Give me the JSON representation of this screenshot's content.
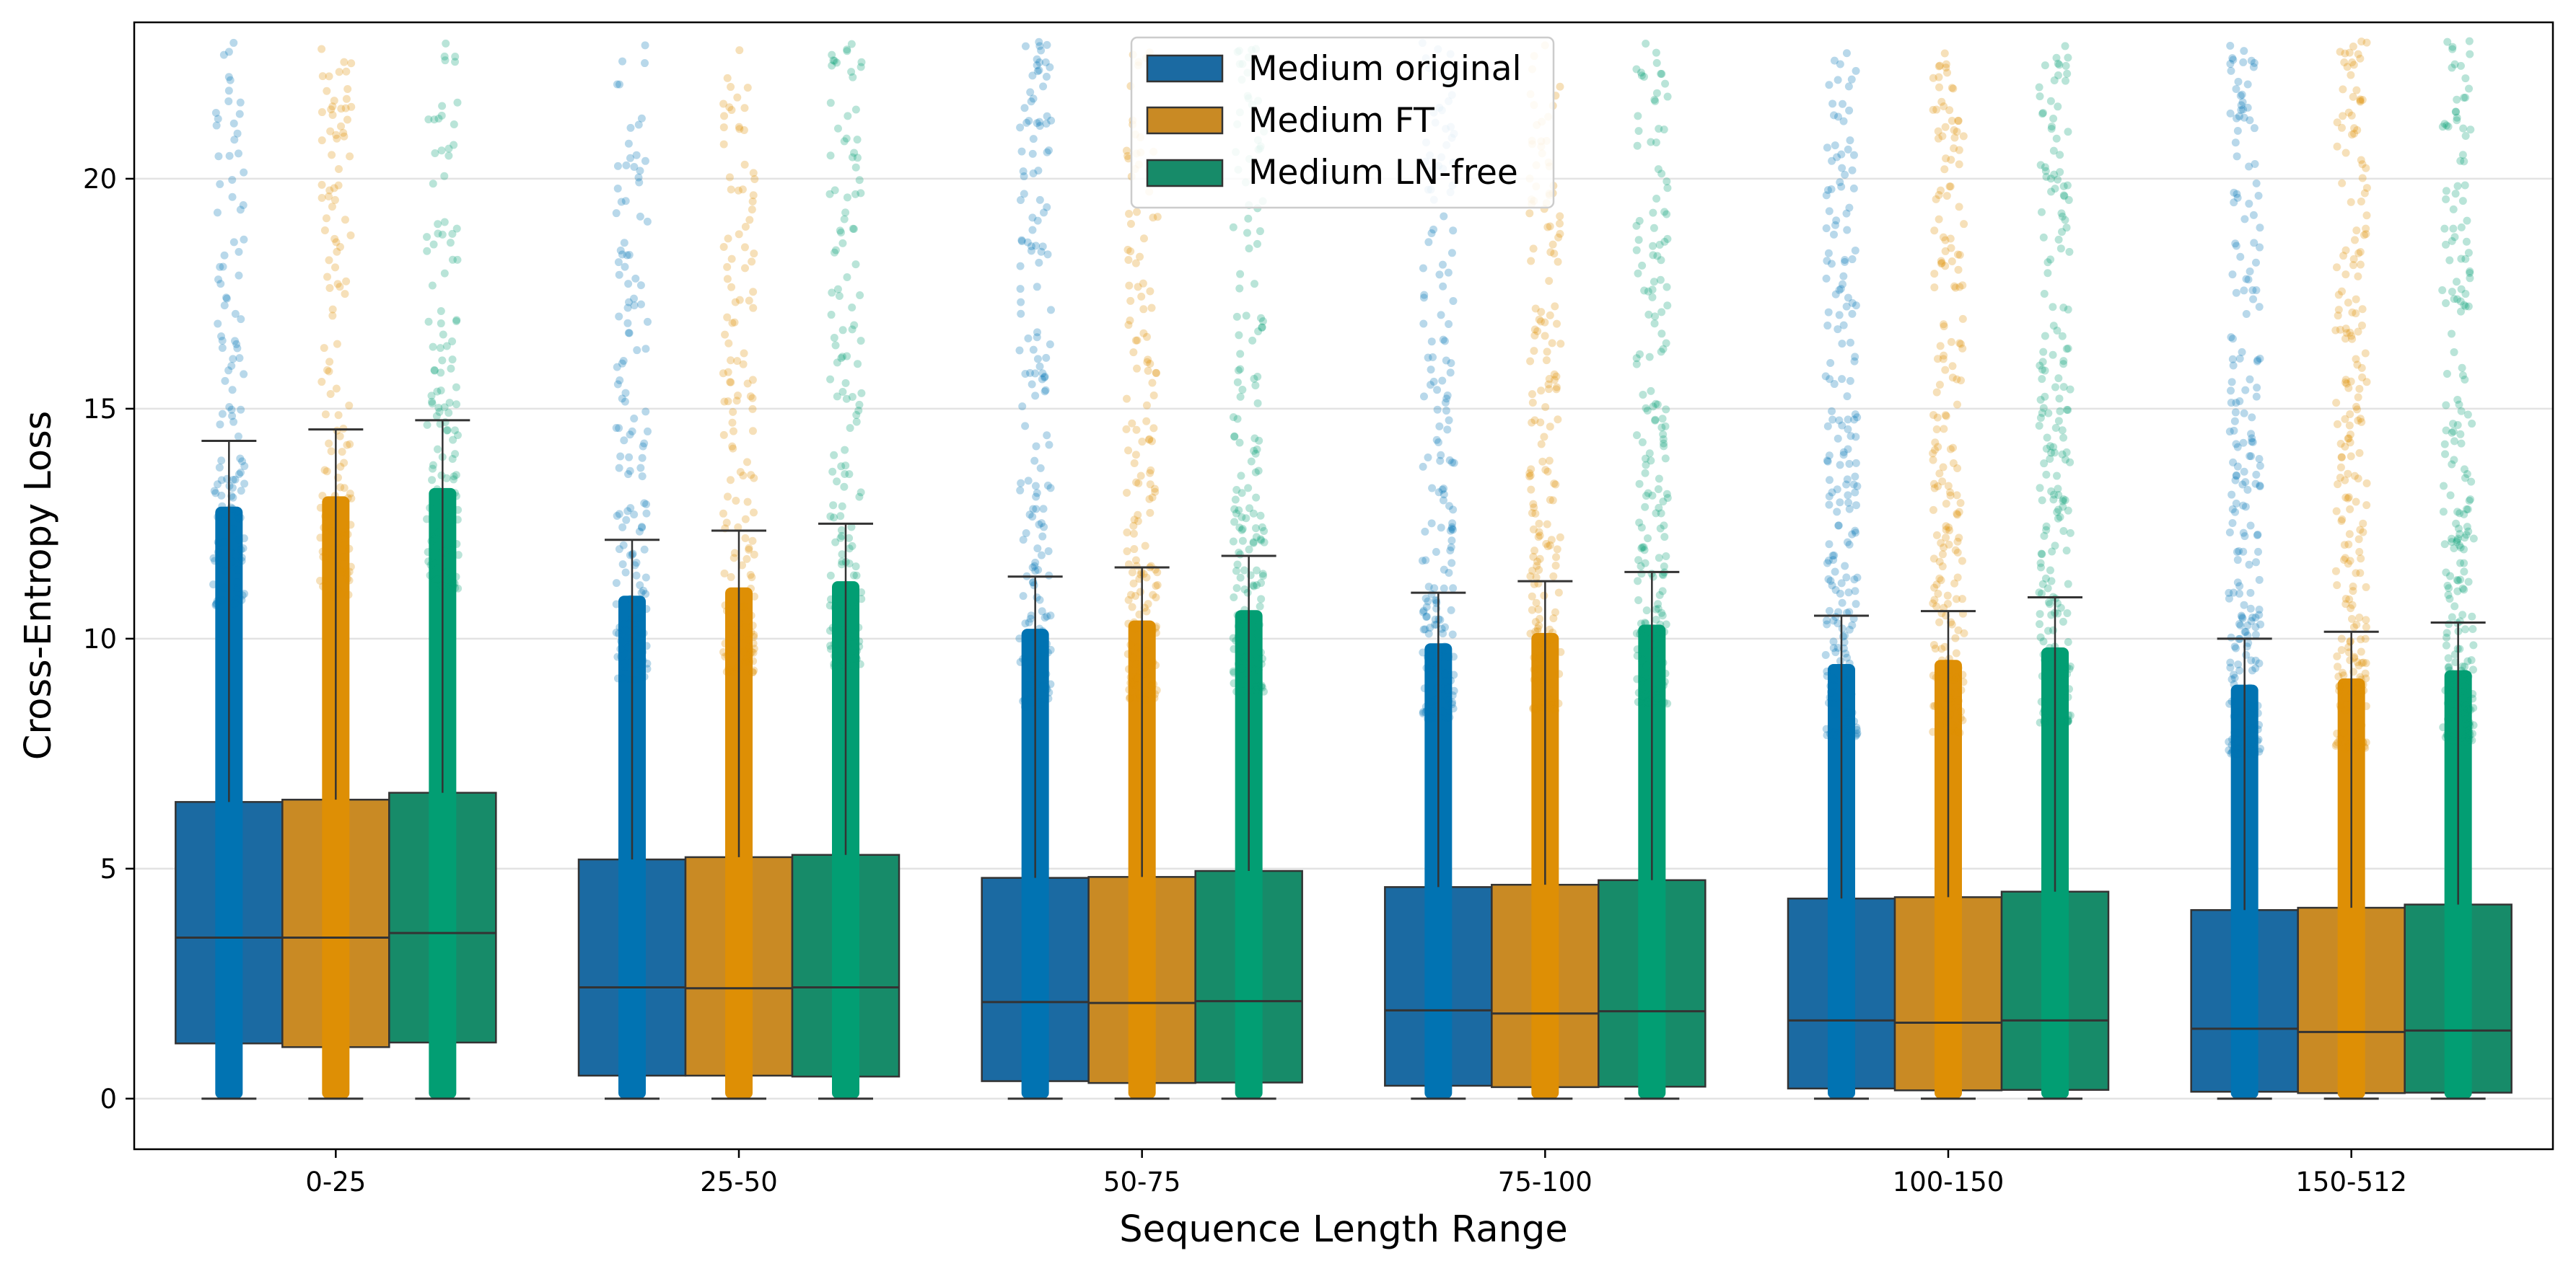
{
  "chart_data": {
    "type": "box",
    "xlabel": "Sequence Length Range",
    "ylabel": "Cross-Entropy Loss",
    "categories": [
      "0-25",
      "25-50",
      "50-75",
      "75-100",
      "100-150",
      "150-512"
    ],
    "ylim": [
      -1.1,
      23.4
    ],
    "yticks": [
      0,
      5,
      10,
      15,
      20
    ],
    "grid": "horizontal",
    "legend_position": "top-center",
    "series": [
      {
        "name": "Medium original",
        "color": "#0173b2",
        "box_color": "#1b6aa2",
        "boxes": [
          {
            "q1": 1.2,
            "median": 3.5,
            "q3": 6.45,
            "whisker_low": 0,
            "whisker_high": 14.3
          },
          {
            "q1": 0.5,
            "median": 2.42,
            "q3": 5.2,
            "whisker_low": 0,
            "whisker_high": 12.15
          },
          {
            "q1": 0.38,
            "median": 2.1,
            "q3": 4.8,
            "whisker_low": 0,
            "whisker_high": 11.35
          },
          {
            "q1": 0.28,
            "median": 1.92,
            "q3": 4.6,
            "whisker_low": 0,
            "whisker_high": 11.0
          },
          {
            "q1": 0.22,
            "median": 1.7,
            "q3": 4.35,
            "whisker_low": 0,
            "whisker_high": 10.5
          },
          {
            "q1": 0.15,
            "median": 1.52,
            "q3": 4.1,
            "whisker_low": 0,
            "whisker_high": 10.0
          }
        ]
      },
      {
        "name": "Medium FT",
        "color": "#de8f05",
        "box_color": "#c98a24",
        "boxes": [
          {
            "q1": 1.12,
            "median": 3.5,
            "q3": 6.5,
            "whisker_low": 0,
            "whisker_high": 14.55
          },
          {
            "q1": 0.5,
            "median": 2.4,
            "q3": 5.25,
            "whisker_low": 0,
            "whisker_high": 12.35
          },
          {
            "q1": 0.34,
            "median": 2.08,
            "q3": 4.82,
            "whisker_low": 0,
            "whisker_high": 11.55
          },
          {
            "q1": 0.25,
            "median": 1.85,
            "q3": 4.65,
            "whisker_low": 0,
            "whisker_high": 11.25
          },
          {
            "q1": 0.18,
            "median": 1.65,
            "q3": 4.38,
            "whisker_low": 0,
            "whisker_high": 10.6
          },
          {
            "q1": 0.12,
            "median": 1.45,
            "q3": 4.15,
            "whisker_low": 0,
            "whisker_high": 10.15
          }
        ]
      },
      {
        "name": "Medium LN-free",
        "color": "#029e73",
        "box_color": "#178b69",
        "boxes": [
          {
            "q1": 1.22,
            "median": 3.6,
            "q3": 6.65,
            "whisker_low": 0,
            "whisker_high": 14.75
          },
          {
            "q1": 0.48,
            "median": 2.42,
            "q3": 5.3,
            "whisker_low": 0,
            "whisker_high": 12.5
          },
          {
            "q1": 0.35,
            "median": 2.12,
            "q3": 4.95,
            "whisker_low": 0,
            "whisker_high": 11.8
          },
          {
            "q1": 0.26,
            "median": 1.9,
            "q3": 4.75,
            "whisker_low": 0,
            "whisker_high": 11.45
          },
          {
            "q1": 0.19,
            "median": 1.7,
            "q3": 4.5,
            "whisker_low": 0,
            "whisker_high": 10.9
          },
          {
            "q1": 0.13,
            "median": 1.48,
            "q3": 4.22,
            "whisker_low": 0,
            "whisker_high": 10.35
          }
        ]
      }
    ],
    "points_max": 23.0
  }
}
